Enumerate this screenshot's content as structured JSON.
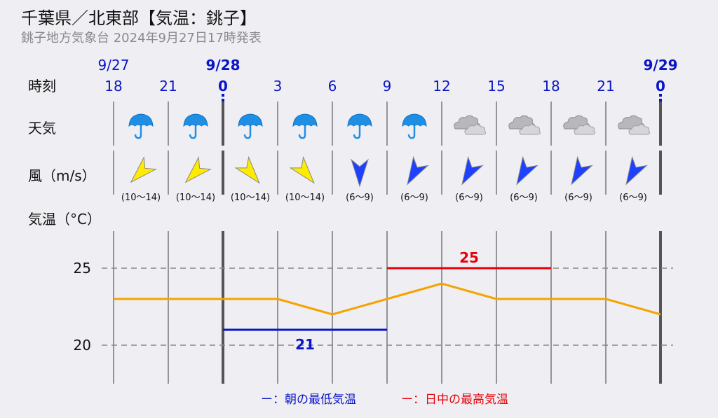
{
  "header": {
    "title": "千葉県／北東部【気温：銚子】",
    "subtitle": "銚子地方気象台 2024年9月27日17時発表"
  },
  "rows": {
    "time": "時刻",
    "weather": "天気",
    "wind": "風（m/s）",
    "temp": "気温（°C）"
  },
  "dates": [
    {
      "label": "9/27",
      "index": 0,
      "bold": false
    },
    {
      "label": "9/28",
      "index": 2,
      "bold": true
    },
    {
      "label": "9/29",
      "index": 10,
      "bold": true
    }
  ],
  "hours": [
    "18",
    "21",
    "0",
    "3",
    "6",
    "9",
    "12",
    "15",
    "18",
    "21",
    "0"
  ],
  "weather": [
    "umbrella-icon",
    "umbrella-icon",
    "umbrella-icon",
    "umbrella-icon",
    "umbrella-icon",
    "umbrella-icon",
    "cloud-icon",
    "cloud-icon",
    "cloud-icon",
    "cloud-icon"
  ],
  "wind": [
    {
      "range": "(10〜14)",
      "color": "#ffeb00",
      "rotate": 225
    },
    {
      "range": "(10〜14)",
      "color": "#ffeb00",
      "rotate": 225
    },
    {
      "range": "(10〜14)",
      "color": "#ffeb00",
      "rotate": 140
    },
    {
      "range": "(10〜14)",
      "color": "#ffeb00",
      "rotate": 140
    },
    {
      "range": "(6〜9)",
      "color": "#1e40ff",
      "rotate": 180
    },
    {
      "range": "(6〜9)",
      "color": "#1e40ff",
      "rotate": 210
    },
    {
      "range": "(6〜9)",
      "color": "#1e40ff",
      "rotate": 210
    },
    {
      "range": "(6〜9)",
      "color": "#1e40ff",
      "rotate": 210
    },
    {
      "range": "(6〜9)",
      "color": "#1e40ff",
      "rotate": 210
    },
    {
      "range": "(6〜9)",
      "color": "#1e40ff",
      "rotate": 210
    }
  ],
  "chart_data": {
    "type": "line",
    "x": [
      "18",
      "21",
      "0",
      "3",
      "6",
      "9",
      "12",
      "15",
      "18",
      "21",
      "0"
    ],
    "series": [
      {
        "values": [
          23,
          23,
          23,
          23,
          22,
          23,
          24,
          23,
          23,
          23,
          22
        ],
        "color": "#f5a300"
      }
    ],
    "ylim": [
      18,
      28
    ],
    "yticks": [
      20,
      25
    ],
    "min_temp": {
      "value": 21,
      "label": "21",
      "from": 2,
      "to": 5,
      "color": "#0a14c8"
    },
    "max_temp": {
      "value": 25,
      "label": "25",
      "from": 5,
      "to": 8,
      "color": "#e8000a"
    },
    "grid": true
  },
  "legend": {
    "min": "ー：朝の最低気温",
    "max": "ー：日中の最高気温",
    "min_color": "#0a14c8",
    "max_color": "#e8000a"
  }
}
